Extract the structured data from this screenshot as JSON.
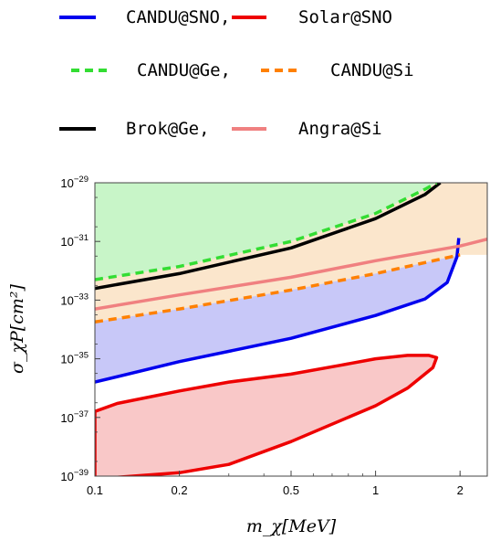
{
  "chart_data": {
    "type": "area",
    "xlabel": "m_χ[MeV]",
    "ylabel": "σ_χP[cm²]",
    "x_scale": "log",
    "y_scale": "log",
    "xlim": [
      0.1,
      2.5
    ],
    "ylim": [
      1e-39,
      1e-29
    ],
    "x_ticks": [
      {
        "value": 0.1,
        "label": "0.1"
      },
      {
        "value": 0.2,
        "label": "0.2"
      },
      {
        "value": 0.5,
        "label": "0.5"
      },
      {
        "value": 1,
        "label": "1"
      },
      {
        "value": 2,
        "label": "2"
      }
    ],
    "y_ticks": [
      {
        "value": 1e-29,
        "base": "10",
        "exp": "−29"
      },
      {
        "value": 1e-31,
        "base": "10",
        "exp": "−31"
      },
      {
        "value": 1e-33,
        "base": "10",
        "exp": "−33"
      },
      {
        "value": 1e-35,
        "base": "10",
        "exp": "−35"
      },
      {
        "value": 1e-37,
        "base": "10",
        "exp": "−37"
      },
      {
        "value": 1e-39,
        "base": "10",
        "exp": "−39"
      }
    ],
    "legend": {
      "placement": "top",
      "rows": [
        [
          {
            "series": "CANDU@SNO",
            "label": "CANDU@SNO,"
          },
          {
            "series": "Solar@SNO",
            "label": "Solar@SNO"
          }
        ],
        [
          {
            "series": "CANDU@Ge",
            "label": "CANDU@Ge,"
          },
          {
            "series": "CANDU@Si",
            "label": "CANDU@Si"
          }
        ],
        [
          {
            "series": "Brok@Ge",
            "label": "Brok@Ge,"
          },
          {
            "series": "Angra@Si",
            "label": "Angra@Si"
          }
        ]
      ]
    },
    "series": [
      {
        "name": "CANDU@SNO",
        "color": "#0000ee",
        "fill": "#c8c8f8",
        "style": "solid",
        "points": [
          [
            0.1,
            1.6e-36
          ],
          [
            0.2,
            8e-36
          ],
          [
            0.5,
            5e-35
          ],
          [
            1,
            3e-34
          ],
          [
            1.5,
            1.1e-33
          ],
          [
            1.8,
            4e-33
          ],
          [
            1.95,
            3e-32
          ],
          [
            1.98,
            1.3e-31
          ]
        ]
      },
      {
        "name": "CANDU@Si",
        "color": "#ff8000",
        "fill": "#fbe6cc",
        "style": "dashed",
        "points": [
          [
            0.1,
            1.8e-34
          ],
          [
            0.2,
            5e-34
          ],
          [
            0.5,
            2.2e-33
          ],
          [
            1,
            8e-33
          ],
          [
            2,
            3.5e-32
          ]
        ]
      },
      {
        "name": "Angra@Si",
        "color": "#f08080",
        "style": "solid",
        "points": [
          [
            0.1,
            5e-34
          ],
          [
            0.2,
            1.5e-33
          ],
          [
            0.5,
            6e-33
          ],
          [
            1,
            2.2e-32
          ],
          [
            2,
            7e-32
          ],
          [
            2.5,
            1.2e-31
          ]
        ]
      },
      {
        "name": "Brok@Ge",
        "color": "#000000",
        "style": "solid",
        "points": [
          [
            0.1,
            2.5e-33
          ],
          [
            0.2,
            8e-33
          ],
          [
            0.5,
            6e-32
          ],
          [
            1,
            6e-31
          ],
          [
            1.5,
            4e-30
          ],
          [
            1.7,
            1e-29
          ]
        ]
      },
      {
        "name": "CANDU@Ge",
        "color": "#33dd33",
        "fill": "#c8f5c8",
        "style": "dashed",
        "points": [
          [
            0.1,
            5e-33
          ],
          [
            0.2,
            1.4e-32
          ],
          [
            0.5,
            1e-31
          ],
          [
            1,
            9e-31
          ],
          [
            1.5,
            6e-30
          ],
          [
            1.65,
            1e-29
          ]
        ]
      },
      {
        "name": "Solar@SNO",
        "color": "#ee0000",
        "fill": "#f9c8c8",
        "style": "solid",
        "closed": true,
        "points": [
          [
            0.1,
            1.6e-37
          ],
          [
            0.12,
            3e-37
          ],
          [
            0.2,
            8e-37
          ],
          [
            0.3,
            1.6e-36
          ],
          [
            0.5,
            3e-36
          ],
          [
            0.75,
            6e-36
          ],
          [
            1,
            1e-35
          ],
          [
            1.3,
            1.3e-35
          ],
          [
            1.55,
            1.3e-35
          ],
          [
            1.65,
            1.1e-35
          ],
          [
            1.6,
            5e-36
          ],
          [
            1.3,
            1e-36
          ],
          [
            1,
            2.5e-37
          ],
          [
            0.5,
            1.5e-38
          ],
          [
            0.3,
            2.5e-39
          ],
          [
            0.2,
            1.3e-39
          ],
          [
            0.1,
            8e-40
          ]
        ]
      }
    ]
  }
}
